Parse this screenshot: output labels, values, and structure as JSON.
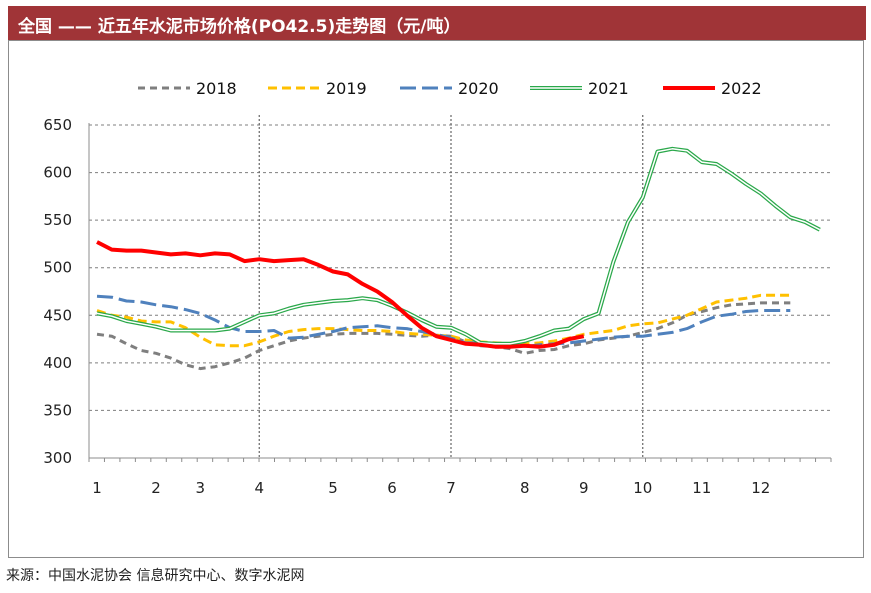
{
  "header": {
    "title": "全国 —— 近五年水泥市场价格(PO42.5)走势图（元/吨）"
  },
  "source": "来源：中国水泥协会 信息研究中心、数字水泥网",
  "chart_data": {
    "type": "line",
    "title": "全国 —— 近五年水泥市场价格(PO42.5)走势图（元/吨）",
    "ylabel": "",
    "xlabel": "",
    "ylim": [
      300,
      650
    ],
    "yticks": [
      300,
      350,
      400,
      450,
      500,
      550,
      600,
      650
    ],
    "xlim": [
      1,
      12.9
    ],
    "xtick_labels": [
      {
        "label": "1",
        "x": 1
      },
      {
        "label": "2",
        "x": 2
      },
      {
        "label": "3",
        "x": 2.75
      },
      {
        "label": "4",
        "x": 3.75
      },
      {
        "label": "5",
        "x": 5
      },
      {
        "label": "6",
        "x": 6
      },
      {
        "label": "7",
        "x": 7
      },
      {
        "label": "8",
        "x": 8.25
      },
      {
        "label": "9",
        "x": 9.25
      },
      {
        "label": "10",
        "x": 10.25
      },
      {
        "label": "11",
        "x": 11.25
      },
      {
        "label": "12",
        "x": 12.25
      }
    ],
    "vlines": [
      3.75,
      7,
      10.25
    ],
    "grid": true,
    "legend_position": "top",
    "series": [
      {
        "name": "2018",
        "color": "#7f7f7f",
        "style": "short-dash",
        "points": [
          [
            1,
            430
          ],
          [
            1.25,
            428
          ],
          [
            1.5,
            420
          ],
          [
            1.75,
            413
          ],
          [
            2,
            410
          ],
          [
            2.25,
            405
          ],
          [
            2.5,
            398
          ],
          [
            2.75,
            394
          ],
          [
            3,
            396
          ],
          [
            3.25,
            400
          ],
          [
            3.5,
            405
          ],
          [
            3.75,
            413
          ],
          [
            4,
            418
          ],
          [
            4.25,
            423
          ],
          [
            4.5,
            426
          ],
          [
            4.75,
            428
          ],
          [
            5,
            430
          ],
          [
            5.25,
            431
          ],
          [
            5.5,
            431
          ],
          [
            5.75,
            431
          ],
          [
            6,
            430
          ],
          [
            6.25,
            429
          ],
          [
            6.5,
            428
          ],
          [
            6.75,
            429
          ],
          [
            7,
            428
          ],
          [
            7.25,
            422
          ],
          [
            7.5,
            418
          ],
          [
            7.75,
            417
          ],
          [
            8,
            415
          ],
          [
            8.25,
            410
          ],
          [
            8.5,
            413
          ],
          [
            8.75,
            414
          ],
          [
            9,
            418
          ],
          [
            9.25,
            420
          ],
          [
            9.5,
            424
          ],
          [
            9.75,
            426
          ],
          [
            10,
            428
          ],
          [
            10.25,
            432
          ],
          [
            10.5,
            436
          ],
          [
            10.75,
            442
          ],
          [
            11,
            450
          ],
          [
            11.25,
            454
          ],
          [
            11.5,
            458
          ],
          [
            11.75,
            461
          ],
          [
            12,
            462
          ],
          [
            12.25,
            463
          ],
          [
            12.5,
            463
          ],
          [
            12.75,
            463
          ]
        ]
      },
      {
        "name": "2019",
        "color": "#ffc000",
        "style": "dash",
        "points": [
          [
            1,
            455
          ],
          [
            1.25,
            450
          ],
          [
            1.5,
            448
          ],
          [
            1.75,
            444
          ],
          [
            2,
            443
          ],
          [
            2.25,
            443
          ],
          [
            2.5,
            437
          ],
          [
            2.75,
            427
          ],
          [
            3,
            419
          ],
          [
            3.25,
            418
          ],
          [
            3.5,
            418
          ],
          [
            3.75,
            422
          ],
          [
            4,
            428
          ],
          [
            4.25,
            433
          ],
          [
            4.5,
            435
          ],
          [
            4.75,
            436
          ],
          [
            5,
            436
          ],
          [
            5.25,
            435
          ],
          [
            5.5,
            434
          ],
          [
            5.75,
            434
          ],
          [
            6,
            433
          ],
          [
            6.25,
            431
          ],
          [
            6.5,
            430
          ],
          [
            6.75,
            429
          ],
          [
            7,
            428
          ],
          [
            7.25,
            424
          ],
          [
            7.5,
            422
          ],
          [
            7.75,
            421
          ],
          [
            8,
            420
          ],
          [
            8.25,
            420
          ],
          [
            8.5,
            421
          ],
          [
            8.75,
            423
          ],
          [
            9,
            426
          ],
          [
            9.25,
            430
          ],
          [
            9.5,
            432
          ],
          [
            9.75,
            434
          ],
          [
            10,
            439
          ],
          [
            10.25,
            441
          ],
          [
            10.5,
            442
          ],
          [
            10.75,
            446
          ],
          [
            11,
            450
          ],
          [
            11.25,
            457
          ],
          [
            11.5,
            464
          ],
          [
            11.75,
            466
          ],
          [
            12,
            468
          ],
          [
            12.25,
            471
          ],
          [
            12.5,
            471
          ],
          [
            12.75,
            471
          ]
        ]
      },
      {
        "name": "2020",
        "color": "#4f81bd",
        "style": "long-dash",
        "points": [
          [
            1,
            470
          ],
          [
            1.25,
            469
          ],
          [
            1.5,
            465
          ],
          [
            1.75,
            464
          ],
          [
            2,
            461
          ],
          [
            2.25,
            459
          ],
          [
            2.5,
            456
          ],
          [
            2.75,
            452
          ],
          [
            3,
            445
          ],
          [
            3.25,
            437
          ],
          [
            3.5,
            433
          ],
          [
            3.75,
            433
          ],
          [
            4,
            434
          ],
          [
            4.25,
            426
          ],
          [
            4.5,
            427
          ],
          [
            4.75,
            430
          ],
          [
            5,
            433
          ],
          [
            5.25,
            437
          ],
          [
            5.5,
            438
          ],
          [
            5.75,
            439
          ],
          [
            6,
            437
          ],
          [
            6.25,
            436
          ],
          [
            6.5,
            433
          ],
          [
            6.75,
            430
          ],
          [
            7,
            426
          ],
          [
            7.25,
            421
          ],
          [
            7.5,
            421
          ],
          [
            7.75,
            420
          ],
          [
            8,
            419
          ],
          [
            8.25,
            417
          ],
          [
            8.5,
            419
          ],
          [
            8.75,
            420
          ],
          [
            9,
            421
          ],
          [
            9.25,
            423
          ],
          [
            9.5,
            425
          ],
          [
            9.75,
            427
          ],
          [
            10,
            428
          ],
          [
            10.25,
            428
          ],
          [
            10.5,
            430
          ],
          [
            10.75,
            432
          ],
          [
            11,
            436
          ],
          [
            11.25,
            443
          ],
          [
            11.5,
            449
          ],
          [
            11.75,
            451
          ],
          [
            12,
            454
          ],
          [
            12.25,
            455
          ],
          [
            12.5,
            455
          ],
          [
            12.75,
            455
          ]
        ]
      },
      {
        "name": "2021",
        "color": "#2aa84a",
        "style": "double",
        "points": [
          [
            1,
            452
          ],
          [
            1.25,
            449
          ],
          [
            1.5,
            444
          ],
          [
            1.75,
            441
          ],
          [
            2,
            438
          ],
          [
            2.25,
            434
          ],
          [
            2.5,
            434
          ],
          [
            2.75,
            434
          ],
          [
            3,
            434
          ],
          [
            3.25,
            436
          ],
          [
            3.5,
            443
          ],
          [
            3.75,
            450
          ],
          [
            4,
            452
          ],
          [
            4.25,
            457
          ],
          [
            4.5,
            461
          ],
          [
            4.75,
            463
          ],
          [
            5,
            465
          ],
          [
            5.25,
            466
          ],
          [
            5.5,
            468
          ],
          [
            5.75,
            466
          ],
          [
            6,
            460
          ],
          [
            6.25,
            453
          ],
          [
            6.5,
            445
          ],
          [
            6.75,
            438
          ],
          [
            7,
            437
          ],
          [
            7.25,
            430
          ],
          [
            7.5,
            421
          ],
          [
            7.75,
            420
          ],
          [
            8,
            420
          ],
          [
            8.25,
            423
          ],
          [
            8.5,
            428
          ],
          [
            8.75,
            434
          ],
          [
            9,
            436
          ],
          [
            9.25,
            446
          ],
          [
            9.5,
            452
          ],
          [
            9.75,
            506
          ],
          [
            10,
            548
          ],
          [
            10.25,
            574
          ],
          [
            10.5,
            622
          ],
          [
            10.75,
            625
          ],
          [
            11,
            623
          ],
          [
            11.25,
            611
          ],
          [
            11.5,
            609
          ],
          [
            11.75,
            599
          ],
          [
            12,
            588
          ],
          [
            12.25,
            578
          ],
          [
            12.5,
            565
          ],
          [
            12.75,
            553
          ],
          [
            13,
            548
          ],
          [
            13.25,
            540
          ]
        ]
      },
      {
        "name": "2022",
        "color": "#ff0000",
        "style": "thick",
        "points": [
          [
            1,
            527
          ],
          [
            1.25,
            519
          ],
          [
            1.5,
            518
          ],
          [
            1.75,
            518
          ],
          [
            2,
            516
          ],
          [
            2.25,
            514
          ],
          [
            2.5,
            515
          ],
          [
            2.75,
            513
          ],
          [
            3,
            515
          ],
          [
            3.25,
            514
          ],
          [
            3.5,
            507
          ],
          [
            3.75,
            509
          ],
          [
            4,
            507
          ],
          [
            4.25,
            508
          ],
          [
            4.5,
            509
          ],
          [
            4.75,
            503
          ],
          [
            5,
            496
          ],
          [
            5.25,
            493
          ],
          [
            5.5,
            483
          ],
          [
            5.75,
            475
          ],
          [
            6,
            464
          ],
          [
            6.25,
            450
          ],
          [
            6.5,
            437
          ],
          [
            6.75,
            428
          ],
          [
            7,
            424
          ],
          [
            7.25,
            420
          ],
          [
            7.5,
            419
          ],
          [
            7.75,
            417
          ],
          [
            8,
            417
          ],
          [
            8.25,
            418
          ],
          [
            8.5,
            417
          ],
          [
            8.75,
            419
          ],
          [
            9,
            425
          ],
          [
            9.25,
            428
          ]
        ]
      }
    ]
  }
}
